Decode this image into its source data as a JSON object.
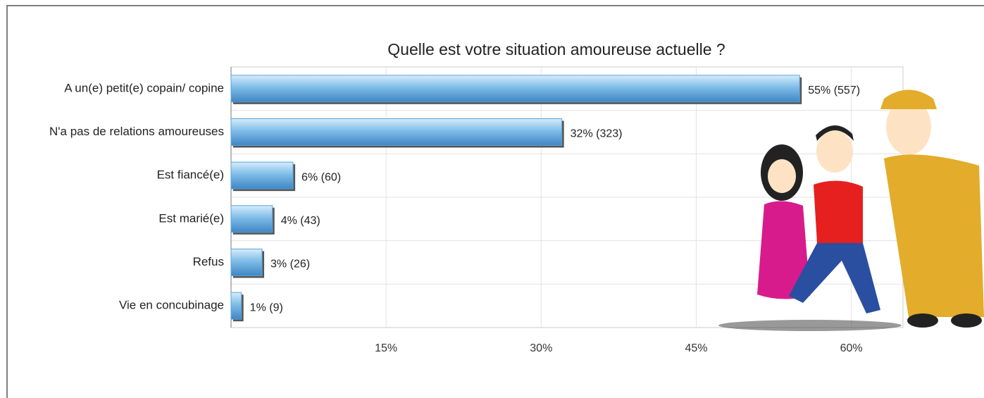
{
  "chart_data": {
    "type": "bar",
    "orientation": "horizontal",
    "title": "Quelle est votre situation amoureuse actuelle ?",
    "categories": [
      "A un(e) petit(e) copain/ copine",
      "N'a pas de relations amoureuses",
      "Est fiancé(e)",
      "Est marié(e)",
      "Refus",
      "Vie en concubinage"
    ],
    "values": [
      55,
      32,
      6,
      4,
      3,
      1
    ],
    "value_labels": [
      "55% (557)",
      "32% (323)",
      "6% (60)",
      "4% (43)",
      "3% (26)",
      "1% (9)"
    ],
    "color": "#5ba3d9",
    "xlim": [
      0,
      65
    ],
    "xticks": [
      {
        "value": 15,
        "label": "15%"
      },
      {
        "value": 30,
        "label": "30%"
      },
      {
        "value": 45,
        "label": "45%"
      },
      {
        "value": 60,
        "label": "60%"
      }
    ],
    "grid": true
  }
}
